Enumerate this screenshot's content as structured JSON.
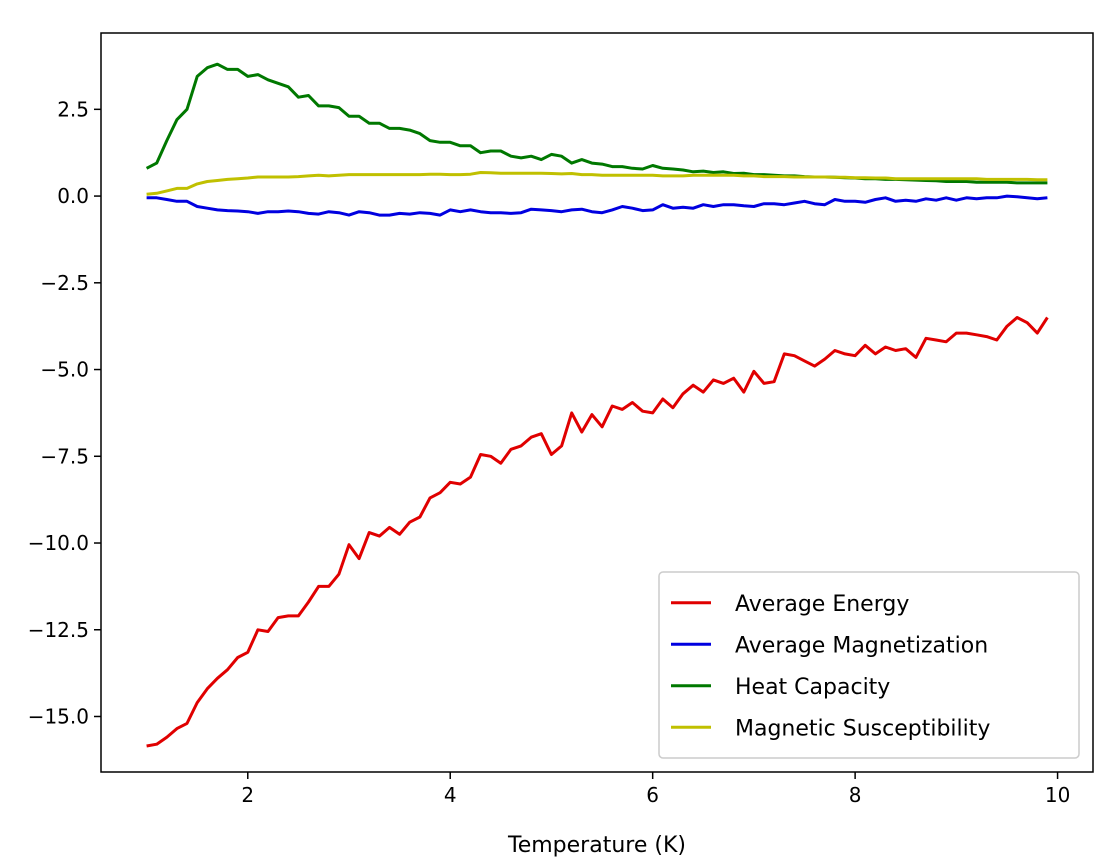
{
  "chart_data": {
    "type": "line",
    "title": "",
    "xlabel": "Temperature (K)",
    "ylabel": "",
    "xlim": [
      0.55,
      10.35
    ],
    "ylim": [
      -16.6,
      4.7
    ],
    "xticks": [
      2,
      4,
      6,
      8,
      10
    ],
    "xtick_labels": [
      "2",
      "4",
      "6",
      "8",
      "10"
    ],
    "yticks": [
      2.5,
      0.0,
      -2.5,
      -5.0,
      -7.5,
      -10.0,
      -12.5,
      -15.0
    ],
    "ytick_labels": [
      "2.5",
      "0.0",
      "−2.5",
      "−5.0",
      "−7.5",
      "−10.0",
      "−12.5",
      "−15.0"
    ],
    "grid": false,
    "legend_position": "lower-right",
    "x": [
      1.0,
      1.1,
      1.2,
      1.3,
      1.4,
      1.5,
      1.6,
      1.7,
      1.8,
      1.9,
      2.0,
      2.1,
      2.2,
      2.3,
      2.4,
      2.5,
      2.6,
      2.7,
      2.8,
      2.9,
      3.0,
      3.1,
      3.2,
      3.3,
      3.4,
      3.5,
      3.6,
      3.7,
      3.8,
      3.9,
      4.0,
      4.1,
      4.2,
      4.3,
      4.4,
      4.5,
      4.6,
      4.7,
      4.8,
      4.9,
      5.0,
      5.1,
      5.2,
      5.3,
      5.4,
      5.5,
      5.6,
      5.7,
      5.8,
      5.9,
      6.0,
      6.1,
      6.2,
      6.3,
      6.4,
      6.5,
      6.6,
      6.7,
      6.8,
      6.9,
      7.0,
      7.1,
      7.2,
      7.3,
      7.4,
      7.5,
      7.6,
      7.7,
      7.8,
      7.9,
      8.0,
      8.1,
      8.2,
      8.3,
      8.4,
      8.5,
      8.6,
      8.7,
      8.8,
      8.9,
      9.0,
      9.1,
      9.2,
      9.3,
      9.4,
      9.5,
      9.6,
      9.7,
      9.8,
      9.9
    ],
    "series": [
      {
        "name": "Average Energy",
        "color": "#e00000",
        "values": [
          -15.85,
          -15.8,
          -15.6,
          -15.35,
          -15.2,
          -14.6,
          -14.2,
          -13.9,
          -13.65,
          -13.3,
          -13.15,
          -12.5,
          -12.55,
          -12.15,
          -12.1,
          -12.1,
          -11.7,
          -11.25,
          -11.25,
          -10.9,
          -10.05,
          -10.45,
          -9.7,
          -9.8,
          -9.55,
          -9.75,
          -9.4,
          -9.25,
          -8.7,
          -8.55,
          -8.25,
          -8.3,
          -8.1,
          -7.45,
          -7.5,
          -7.7,
          -7.3,
          -7.2,
          -6.95,
          -6.85,
          -7.45,
          -7.2,
          -6.25,
          -6.8,
          -6.3,
          -6.65,
          -6.05,
          -6.15,
          -5.95,
          -6.2,
          -6.25,
          -5.85,
          -6.1,
          -5.7,
          -5.45,
          -5.65,
          -5.3,
          -5.4,
          -5.25,
          -5.65,
          -5.05,
          -5.4,
          -5.35,
          -4.55,
          -4.6,
          -4.75,
          -4.9,
          -4.7,
          -4.45,
          -4.55,
          -4.6,
          -4.3,
          -4.55,
          -4.35,
          -4.45,
          -4.4,
          -4.65,
          -4.1,
          -4.15,
          -4.2,
          -3.95,
          -3.95,
          -4.0,
          -4.05,
          -4.15,
          -3.75,
          -3.5,
          -3.65,
          -3.95,
          -3.5
        ]
      },
      {
        "name": "Average Magnetization",
        "color": "#0000e0",
        "values": [
          -0.05,
          -0.05,
          -0.1,
          -0.15,
          -0.15,
          -0.3,
          -0.35,
          -0.4,
          -0.42,
          -0.43,
          -0.45,
          -0.5,
          -0.45,
          -0.45,
          -0.43,
          -0.45,
          -0.5,
          -0.52,
          -0.45,
          -0.48,
          -0.55,
          -0.45,
          -0.48,
          -0.55,
          -0.55,
          -0.5,
          -0.52,
          -0.48,
          -0.5,
          -0.55,
          -0.4,
          -0.45,
          -0.4,
          -0.45,
          -0.48,
          -0.48,
          -0.5,
          -0.48,
          -0.38,
          -0.4,
          -0.42,
          -0.45,
          -0.4,
          -0.38,
          -0.45,
          -0.48,
          -0.4,
          -0.3,
          -0.35,
          -0.42,
          -0.4,
          -0.25,
          -0.35,
          -0.32,
          -0.35,
          -0.25,
          -0.3,
          -0.25,
          -0.25,
          -0.28,
          -0.3,
          -0.22,
          -0.22,
          -0.25,
          -0.2,
          -0.15,
          -0.22,
          -0.25,
          -0.1,
          -0.15,
          -0.15,
          -0.18,
          -0.1,
          -0.05,
          -0.15,
          -0.12,
          -0.15,
          -0.08,
          -0.12,
          -0.05,
          -0.12,
          -0.05,
          -0.08,
          -0.05,
          -0.05,
          0.0,
          -0.02,
          -0.05,
          -0.08,
          -0.05
        ]
      },
      {
        "name": "Heat Capacity",
        "color": "#007800",
        "values": [
          0.8,
          0.95,
          1.6,
          2.2,
          2.5,
          3.45,
          3.7,
          3.8,
          3.65,
          3.65,
          3.45,
          3.5,
          3.35,
          3.25,
          3.15,
          2.85,
          2.9,
          2.6,
          2.6,
          2.55,
          2.3,
          2.3,
          2.1,
          2.1,
          1.95,
          1.95,
          1.9,
          1.8,
          1.6,
          1.55,
          1.55,
          1.45,
          1.45,
          1.25,
          1.3,
          1.3,
          1.15,
          1.1,
          1.15,
          1.05,
          1.2,
          1.15,
          0.95,
          1.05,
          0.95,
          0.92,
          0.85,
          0.85,
          0.8,
          0.78,
          0.88,
          0.8,
          0.78,
          0.75,
          0.7,
          0.72,
          0.68,
          0.7,
          0.65,
          0.66,
          0.62,
          0.62,
          0.6,
          0.58,
          0.58,
          0.56,
          0.55,
          0.55,
          0.54,
          0.53,
          0.52,
          0.5,
          0.5,
          0.48,
          0.48,
          0.47,
          0.46,
          0.45,
          0.44,
          0.42,
          0.42,
          0.42,
          0.4,
          0.4,
          0.4,
          0.4,
          0.38,
          0.38,
          0.38,
          0.38
        ]
      },
      {
        "name": "Magnetic Susceptibility",
        "color": "#c0c000",
        "values": [
          0.05,
          0.08,
          0.15,
          0.22,
          0.22,
          0.35,
          0.42,
          0.45,
          0.48,
          0.5,
          0.52,
          0.55,
          0.55,
          0.55,
          0.55,
          0.56,
          0.58,
          0.6,
          0.58,
          0.6,
          0.62,
          0.62,
          0.62,
          0.62,
          0.62,
          0.62,
          0.62,
          0.62,
          0.63,
          0.63,
          0.62,
          0.62,
          0.63,
          0.68,
          0.67,
          0.66,
          0.66,
          0.66,
          0.66,
          0.66,
          0.65,
          0.64,
          0.65,
          0.62,
          0.62,
          0.6,
          0.6,
          0.6,
          0.6,
          0.6,
          0.6,
          0.58,
          0.58,
          0.58,
          0.6,
          0.6,
          0.6,
          0.6,
          0.6,
          0.58,
          0.58,
          0.56,
          0.56,
          0.56,
          0.55,
          0.55,
          0.55,
          0.55,
          0.54,
          0.54,
          0.53,
          0.53,
          0.52,
          0.52,
          0.5,
          0.5,
          0.5,
          0.5,
          0.5,
          0.5,
          0.5,
          0.5,
          0.5,
          0.48,
          0.48,
          0.48,
          0.48,
          0.48,
          0.47,
          0.47
        ]
      }
    ]
  }
}
